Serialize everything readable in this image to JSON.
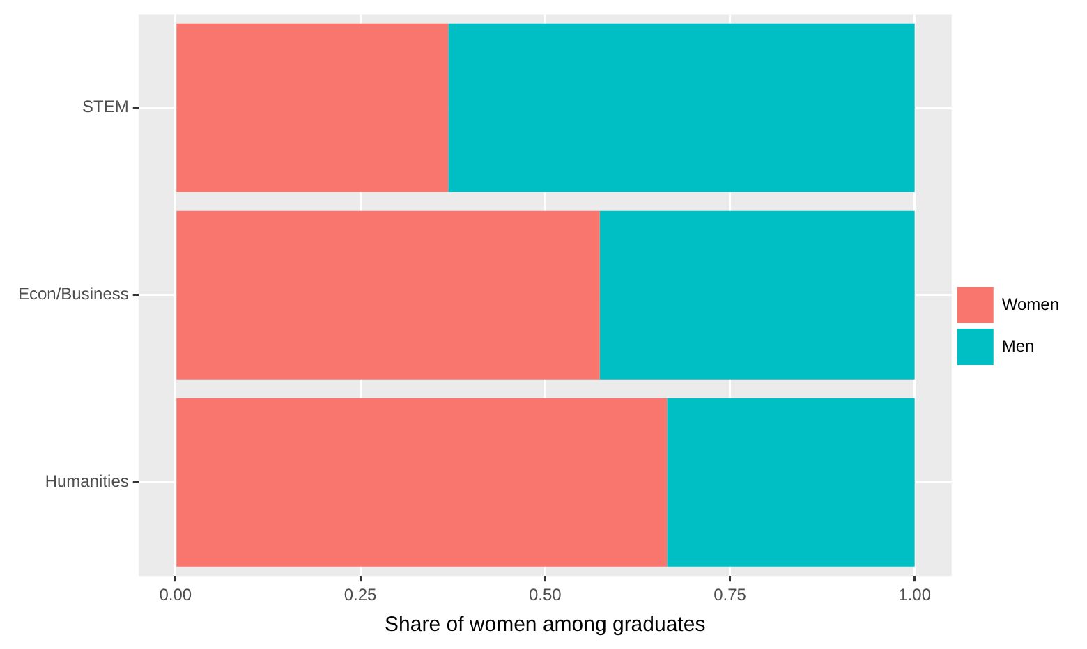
{
  "chart_data": {
    "type": "bar",
    "orientation": "horizontal",
    "stacked": true,
    "xlabel": "Share of women among graduates",
    "categories": [
      "STEM",
      "Econ/Business",
      "Humanities"
    ],
    "series": [
      {
        "name": "Women",
        "color": "#f8766d",
        "values": [
          0.369,
          0.574,
          0.665
        ]
      },
      {
        "name": "Men",
        "color": "#00bfc4",
        "values": [
          0.631,
          0.426,
          0.335
        ]
      }
    ],
    "xlim": [
      -0.05,
      1.05
    ],
    "xticks": [
      {
        "value": 0,
        "label": "0.00"
      },
      {
        "value": 0.25,
        "label": "0.25"
      },
      {
        "value": 0.5,
        "label": "0.50"
      },
      {
        "value": 0.75,
        "label": "0.75"
      },
      {
        "value": 1,
        "label": "1.00"
      }
    ],
    "grid": true,
    "legend": "right"
  }
}
